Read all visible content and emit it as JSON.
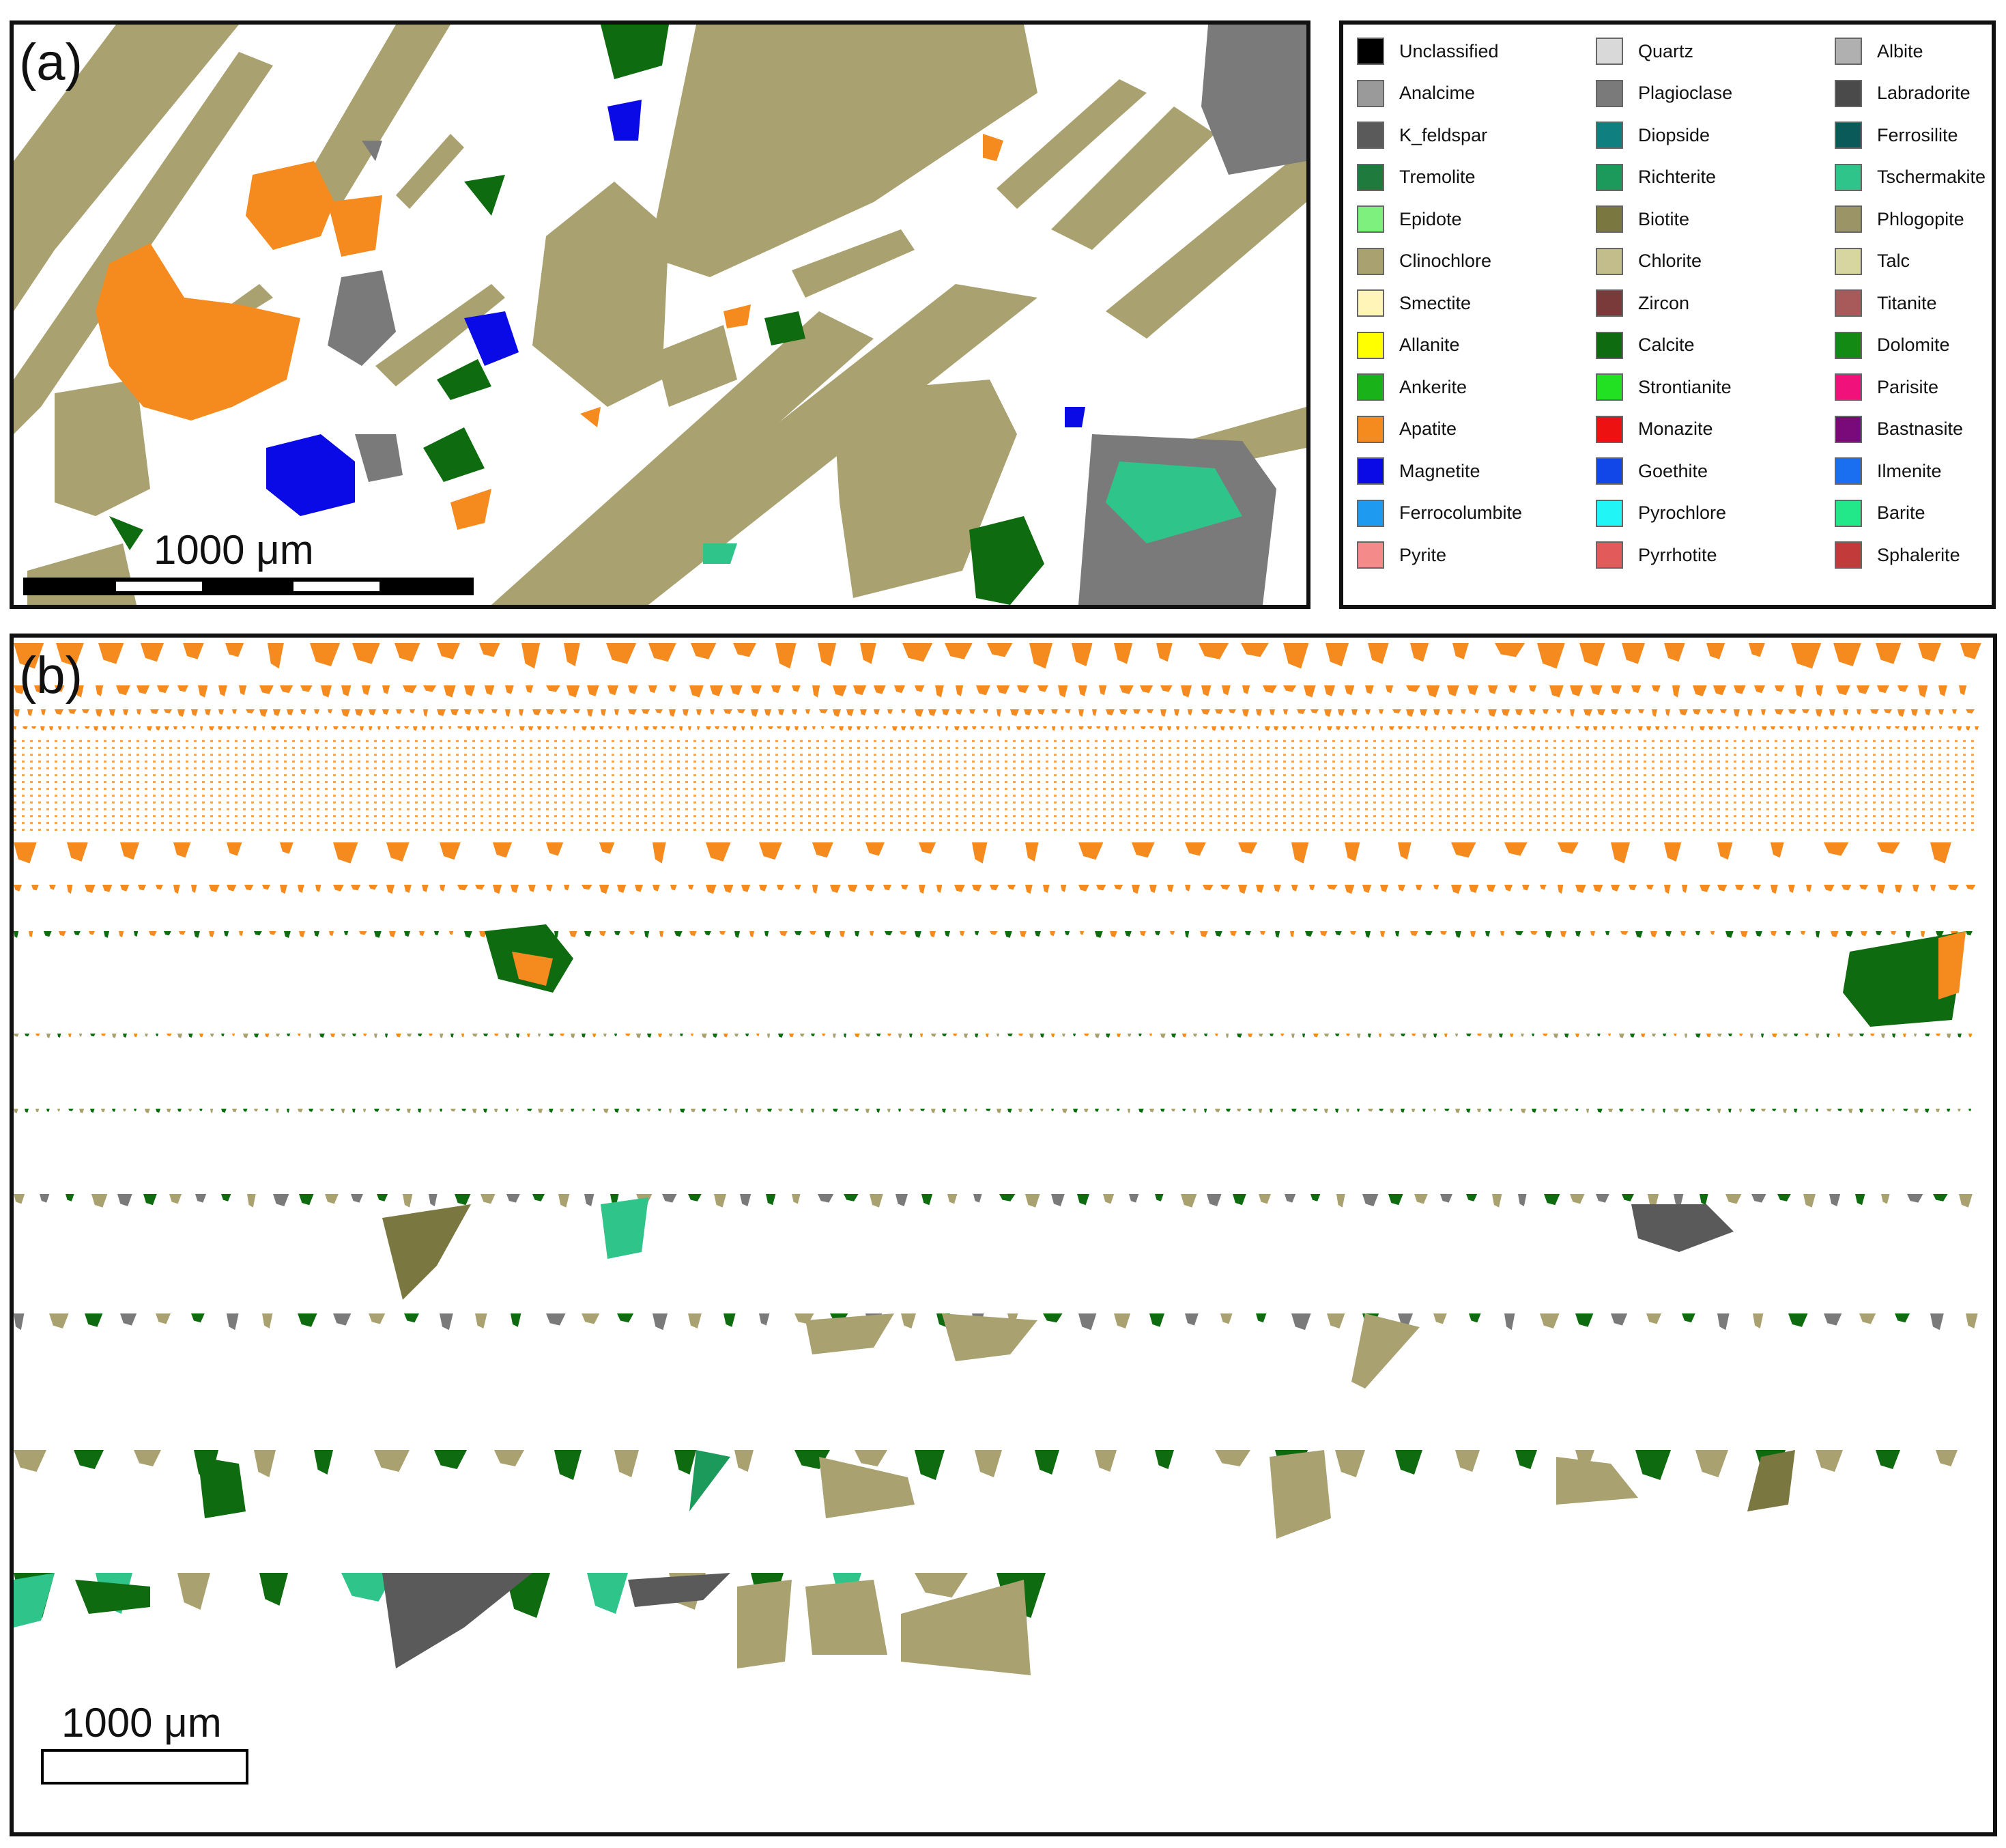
{
  "panel_a": {
    "tag": "(a)",
    "scale_label": "1000 μm"
  },
  "panel_b": {
    "tag": "(b)",
    "scale_label": "1000 μm"
  },
  "legend": {
    "items": [
      {
        "label": "Unclassified",
        "color": "#000000"
      },
      {
        "label": "Analcime",
        "color": "#9a9a9a"
      },
      {
        "label": "K_feldspar",
        "color": "#5a5a5a"
      },
      {
        "label": "Tremolite",
        "color": "#1f7a3e"
      },
      {
        "label": "Epidote",
        "color": "#7ef07e"
      },
      {
        "label": "Clinochlore",
        "color": "#a9a270"
      },
      {
        "label": "Smectite",
        "color": "#fff5b8"
      },
      {
        "label": "Allanite",
        "color": "#ffff00"
      },
      {
        "label": "Ankerite",
        "color": "#19b319"
      },
      {
        "label": "Apatite",
        "color": "#f58a1f"
      },
      {
        "label": "Magnetite",
        "color": "#0a0ae6"
      },
      {
        "label": "Ferrocolumbite",
        "color": "#1e9bf0"
      },
      {
        "label": "Pyrite",
        "color": "#f58a8a"
      },
      {
        "label": "Quartz",
        "color": "#d9d9d9"
      },
      {
        "label": "Plagioclase",
        "color": "#7a7a7a"
      },
      {
        "label": "Diopside",
        "color": "#0f7f7f"
      },
      {
        "label": "Richterite",
        "color": "#1c9a5c"
      },
      {
        "label": "Biotite",
        "color": "#7a7840"
      },
      {
        "label": "Chlorite",
        "color": "#c2bd8a"
      },
      {
        "label": "Zircon",
        "color": "#7a3a3a"
      },
      {
        "label": "Calcite",
        "color": "#0f6b0f"
      },
      {
        "label": "Strontianite",
        "color": "#22e022"
      },
      {
        "label": "Monazite",
        "color": "#ee1111"
      },
      {
        "label": "Goethite",
        "color": "#1146e8"
      },
      {
        "label": "Pyrochlore",
        "color": "#22f5f5"
      },
      {
        "label": "Pyrrhotite",
        "color": "#e25a5a"
      },
      {
        "label": "Albite",
        "color": "#b0b0b0"
      },
      {
        "label": "Labradorite",
        "color": "#4a4a4a"
      },
      {
        "label": "Ferrosilite",
        "color": "#0a5a5a"
      },
      {
        "label": "Tschermakite",
        "color": "#2ec48a"
      },
      {
        "label": "Phlogopite",
        "color": "#9a9466"
      },
      {
        "label": "Talc",
        "color": "#d8d6a0"
      },
      {
        "label": "Titanite",
        "color": "#a85a5a"
      },
      {
        "label": "Dolomite",
        "color": "#138a13"
      },
      {
        "label": "Parisite",
        "color": "#f0127a"
      },
      {
        "label": "Bastnasite",
        "color": "#7a0a7a"
      },
      {
        "label": "Ilmenite",
        "color": "#1a6ef0"
      },
      {
        "label": "Barite",
        "color": "#22e88a"
      },
      {
        "label": "Sphalerite",
        "color": "#c23a3a"
      }
    ]
  },
  "colors": {
    "clinochlore": "#a9a270",
    "apatite": "#f58a1f",
    "magnetite": "#0a0ae6",
    "plagioclase": "#7a7a7a",
    "calcite": "#0f6b0f",
    "tschermakite": "#2ec48a",
    "biotite": "#7a7840",
    "kfeldspar": "#5a5a5a"
  }
}
